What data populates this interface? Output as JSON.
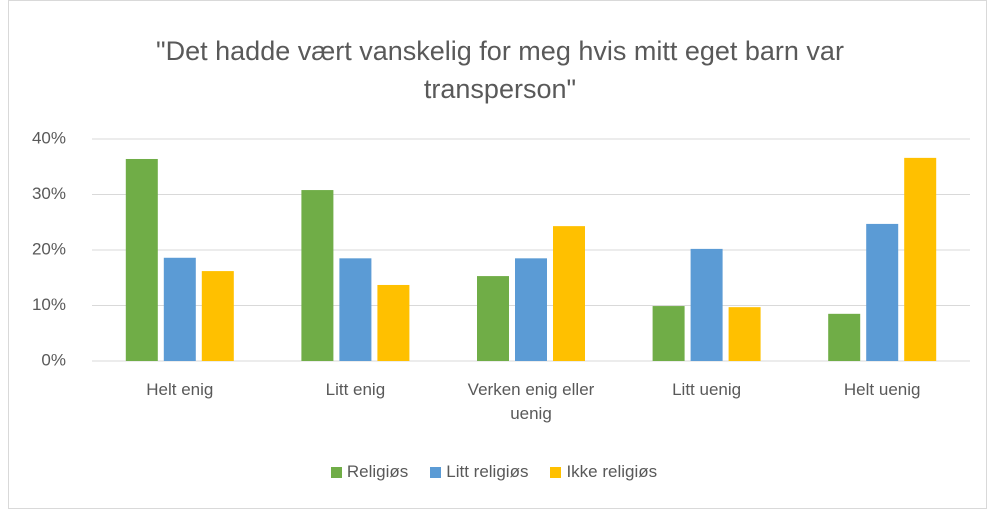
{
  "chart_data": {
    "type": "bar",
    "title": "\"Det hadde vært vanskelig for meg hvis mitt eget barn var transperson\"",
    "categories": [
      "Helt enig",
      "Litt enig",
      "Verken enig eller uenig",
      "Litt uenig",
      "Helt uenig"
    ],
    "series": [
      {
        "name": "Religiøs",
        "color": "#70ad47",
        "values": [
          36.4,
          30.8,
          15.3,
          9.9,
          8.5
        ]
      },
      {
        "name": "Litt religiøs",
        "color": "#5b9bd5",
        "values": [
          18.6,
          18.5,
          18.5,
          20.2,
          24.7
        ]
      },
      {
        "name": "Ikke religiøs",
        "color": "#ffc000",
        "values": [
          16.2,
          13.7,
          24.3,
          9.7,
          36.6
        ]
      }
    ],
    "ylim": [
      0,
      40
    ],
    "yticks": [
      {
        "value": 0,
        "label": "0%"
      },
      {
        "value": 10,
        "label": "10%"
      },
      {
        "value": 20,
        "label": "20%"
      },
      {
        "value": 30,
        "label": "30%"
      },
      {
        "value": 40,
        "label": "40%"
      }
    ],
    "grid": true,
    "legend": "bottom"
  }
}
